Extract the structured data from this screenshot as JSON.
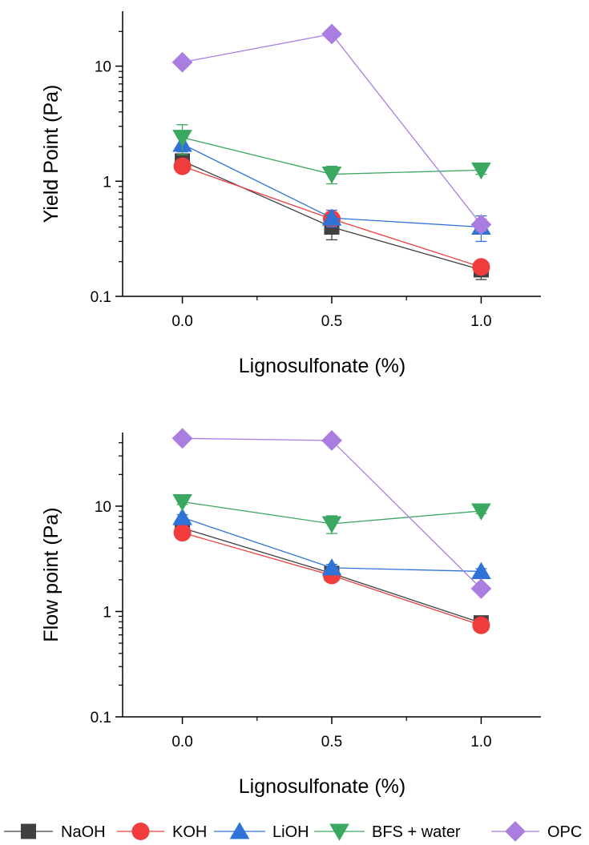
{
  "series_styles": [
    {
      "name": "NaOH",
      "color": "#404040",
      "marker": "square"
    },
    {
      "name": "KOH",
      "color": "#f03c3c",
      "marker": "circle"
    },
    {
      "name": "LiOH",
      "color": "#2f73d6",
      "marker": "triangle-up"
    },
    {
      "name": "BFS + water",
      "color": "#3aa860",
      "marker": "triangle-down"
    },
    {
      "name": "OPC",
      "color": "#a97ee0",
      "marker": "diamond"
    }
  ],
  "chart_data": [
    {
      "type": "line",
      "title": "",
      "xlabel": "Lignosulfonate (%)",
      "ylabel": "Yield Point (Pa)",
      "yscale": "log",
      "ylim": [
        0.1,
        30
      ],
      "xlim": [
        -0.2,
        1.2
      ],
      "xticks": [
        "0.0",
        "0.5",
        "1.0"
      ],
      "yticks": [
        "0.1",
        "1",
        "10"
      ],
      "x": [
        0.0,
        0.5,
        1.0
      ],
      "series": [
        {
          "name": "NaOH",
          "values": [
            1.5,
            0.4,
            0.17
          ],
          "errors": [
            0.1,
            0.09,
            0.03
          ]
        },
        {
          "name": "KOH",
          "values": [
            1.35,
            0.47,
            0.18
          ],
          "errors": [
            0.08,
            0.06,
            0.02
          ]
        },
        {
          "name": "LiOH",
          "values": [
            2.1,
            0.48,
            0.4
          ],
          "errors": [
            0.3,
            0.08,
            0.1
          ]
        },
        {
          "name": "BFS + water",
          "values": [
            2.4,
            1.15,
            1.25
          ],
          "errors": [
            0.7,
            0.2,
            0.1
          ]
        },
        {
          "name": "OPC",
          "values": [
            10.8,
            19.0,
            0.42
          ],
          "errors": [
            0.5,
            0.8,
            0.05
          ]
        }
      ],
      "legend": "bottom"
    },
    {
      "type": "line",
      "title": "",
      "xlabel": "Lignosulfonate (%)",
      "ylabel": "Flow point (Pa)",
      "yscale": "log",
      "ylim": [
        0.1,
        50
      ],
      "xlim": [
        -0.2,
        1.2
      ],
      "xticks": [
        "0.0",
        "0.5",
        "1.0"
      ],
      "yticks": [
        "0.1",
        "1",
        "10"
      ],
      "x": [
        0.0,
        0.5,
        1.0
      ],
      "series": [
        {
          "name": "NaOH",
          "values": [
            6.2,
            2.3,
            0.78
          ],
          "errors": [
            0.3,
            0.1,
            0.05
          ]
        },
        {
          "name": "KOH",
          "values": [
            5.6,
            2.2,
            0.74
          ],
          "errors": [
            0.3,
            0.1,
            0.04
          ]
        },
        {
          "name": "LiOH",
          "values": [
            7.8,
            2.6,
            2.4
          ],
          "errors": [
            0.5,
            0.2,
            0.15
          ]
        },
        {
          "name": "BFS + water",
          "values": [
            11.0,
            6.8,
            9.0
          ],
          "errors": [
            0.6,
            1.3,
            0.5
          ]
        },
        {
          "name": "OPC",
          "values": [
            44.0,
            42.0,
            1.65
          ],
          "errors": [
            1.0,
            1.0,
            0.1
          ]
        }
      ],
      "legend": "bottom"
    }
  ]
}
